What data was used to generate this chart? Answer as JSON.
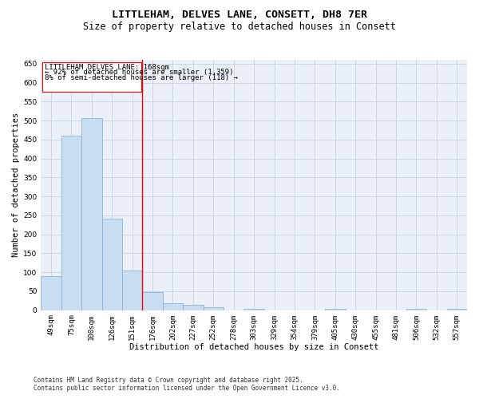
{
  "title_line1": "LITTLEHAM, DELVES LANE, CONSETT, DH8 7ER",
  "title_line2": "Size of property relative to detached houses in Consett",
  "xlabel": "Distribution of detached houses by size in Consett",
  "ylabel": "Number of detached properties",
  "categories": [
    "49sqm",
    "75sqm",
    "100sqm",
    "126sqm",
    "151sqm",
    "176sqm",
    "202sqm",
    "227sqm",
    "252sqm",
    "278sqm",
    "303sqm",
    "329sqm",
    "354sqm",
    "379sqm",
    "405sqm",
    "430sqm",
    "455sqm",
    "481sqm",
    "506sqm",
    "532sqm",
    "557sqm"
  ],
  "values": [
    90,
    460,
    507,
    241,
    104,
    47,
    18,
    14,
    8,
    0,
    4,
    0,
    0,
    0,
    4,
    0,
    0,
    0,
    3,
    0,
    4
  ],
  "bar_color": "#c9ddf2",
  "bar_edge_color": "#8ab4d8",
  "grid_color": "#ccd5e3",
  "background_color": "#eaeff8",
  "red_line_x": 4.5,
  "annotation_title": "LITTLEHAM DELVES LANE: 168sqm",
  "annotation_line1": "← 92% of detached houses are smaller (1,359)",
  "annotation_line2": "8% of semi-detached houses are larger (118) →",
  "ylim": [
    0,
    660
  ],
  "yticks": [
    0,
    50,
    100,
    150,
    200,
    250,
    300,
    350,
    400,
    450,
    500,
    550,
    600,
    650
  ],
  "footnote_line1": "Contains HM Land Registry data © Crown copyright and database right 2025.",
  "footnote_line2": "Contains public sector information licensed under the Open Government Licence v3.0.",
  "title_fontsize": 9.5,
  "subtitle_fontsize": 8.5,
  "axis_label_fontsize": 7.5,
  "tick_fontsize": 6.5,
  "annotation_fontsize": 6.5,
  "footnote_fontsize": 5.5
}
